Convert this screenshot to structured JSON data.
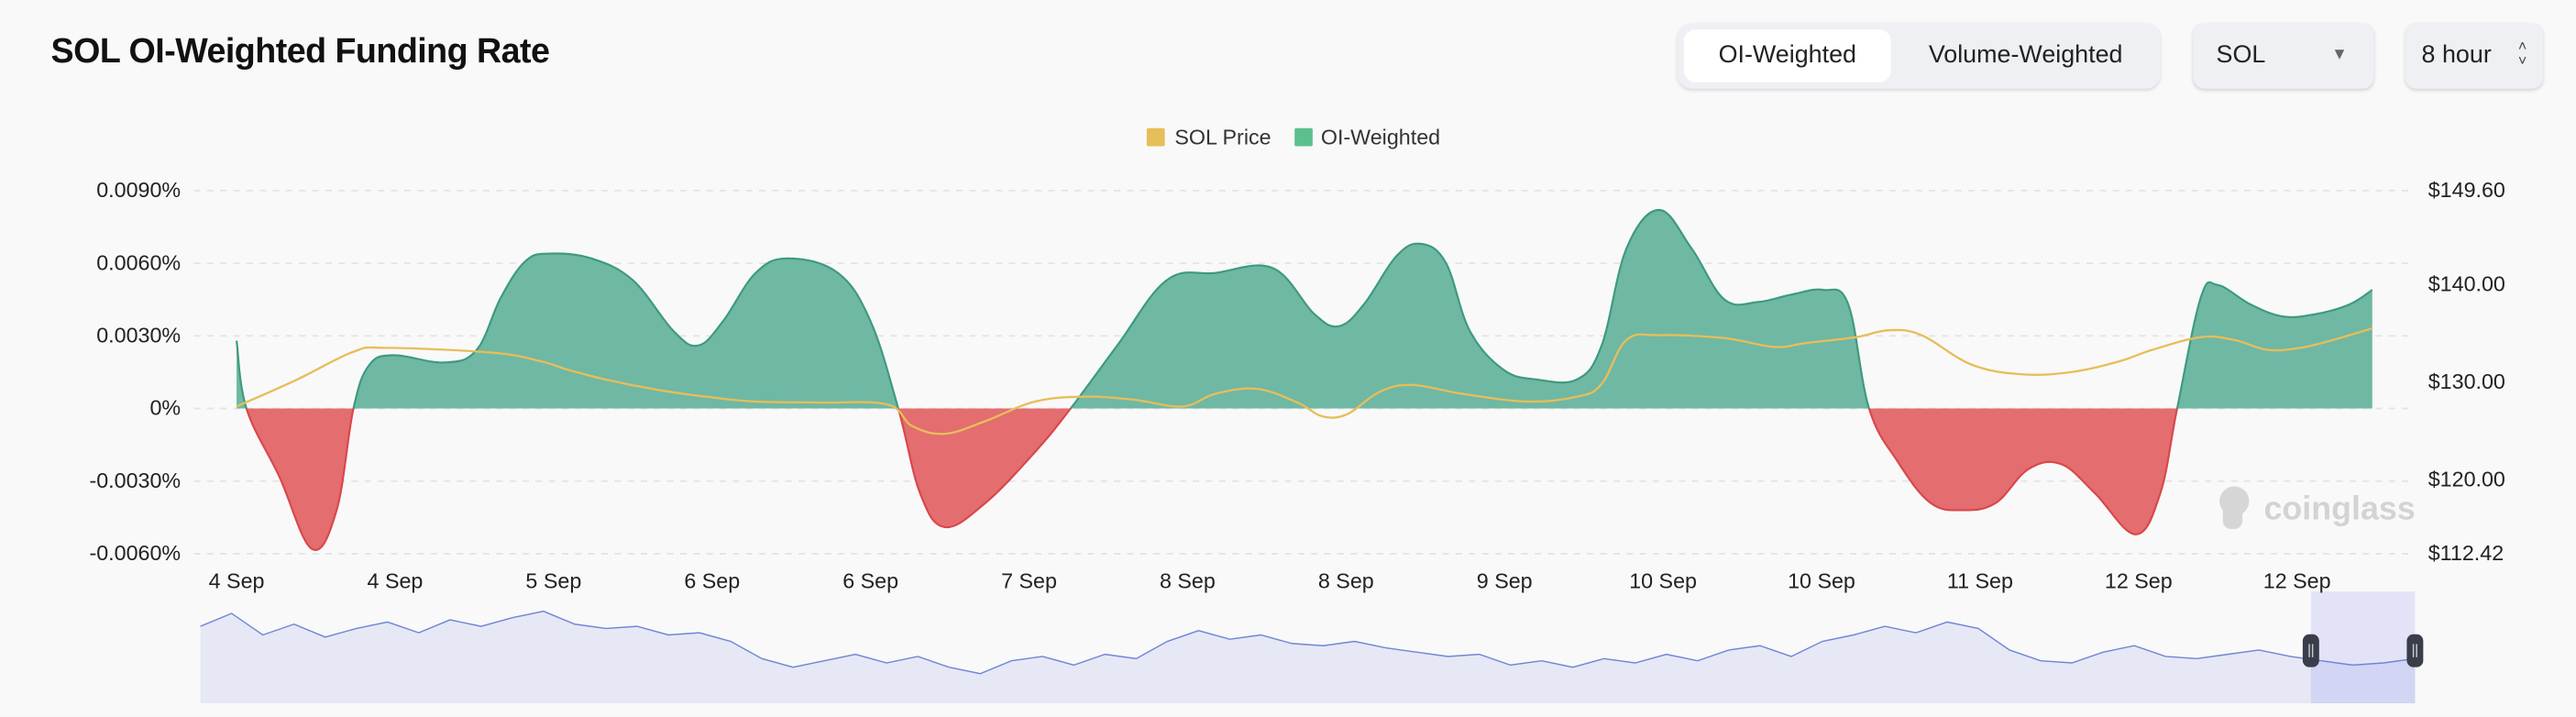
{
  "header": {
    "title": "SOL OI-Weighted Funding Rate",
    "toggle": [
      {
        "label": "OI-Weighted",
        "active": true
      },
      {
        "label": "Volume-Weighted",
        "active": false
      }
    ],
    "coin_select": "SOL",
    "interval_select": "8 hour"
  },
  "watermark": "coinglass",
  "colors": {
    "positive": "#6fb8a4",
    "positive_line": "#3d9a7e",
    "negative": "#e36d6f",
    "negative_line": "#d9474b",
    "price": "#e6be5a",
    "navigator": "#6f86d6"
  },
  "chart_data": {
    "type": "area",
    "title": "SOL OI-Weighted Funding Rate",
    "legend": [
      {
        "label": "SOL Price",
        "color": "#e6be5a"
      },
      {
        "label": "OI-Weighted",
        "color": "#5cc08e"
      }
    ],
    "legend_position": "top-center",
    "x_unit": "hours since start",
    "xlim": [
      0,
      215.6
    ],
    "x_tick_labels": [
      "4 Sep",
      "4 Sep",
      "5 Sep",
      "6 Sep",
      "6 Sep",
      "7 Sep",
      "8 Sep",
      "8 Sep",
      "9 Sep",
      "10 Sep",
      "10 Sep",
      "11 Sep",
      "12 Sep",
      "12 Sep"
    ],
    "x_tick_step_hours": 16,
    "y_left": {
      "ticks": [
        0.009,
        0.006,
        0.003,
        0,
        -0.003,
        -0.006
      ],
      "labels": [
        "0.0090%",
        "0.0060%",
        "0.0030%",
        "0%",
        "-0.0030%",
        "-0.0060%"
      ],
      "ylim": [
        -0.006,
        0.009
      ]
    },
    "y_right": {
      "ticks": [
        149.6,
        140,
        130,
        120,
        112.42
      ],
      "labels": [
        "$149.60",
        "$140.00",
        "$130.00",
        "$120.00",
        "$112.42"
      ],
      "ylim": [
        112.42,
        149.6
      ]
    },
    "grid": true,
    "series": [
      {
        "name": "OI-Weighted",
        "axis": "left",
        "unit": "%",
        "x": [
          0,
          1,
          4.3,
          7.6,
          10.1,
          11.8,
          13.4,
          15.9,
          20.9,
          24.2,
          26.7,
          29.2,
          31.7,
          35.8,
          40,
          44.1,
          46.6,
          49.1,
          52.4,
          55.7,
          60.7,
          64,
          66.8,
          69,
          71.5,
          75.6,
          80.6,
          84.2,
          88.9,
          93.9,
          98.8,
          104.6,
          108.8,
          111.3,
          113.8,
          117.1,
          119.6,
          122.1,
          124.5,
          127.9,
          131.2,
          135.3,
          137.8,
          140.3,
          143.6,
          146.9,
          150.2,
          153.6,
          156.9,
          160.2,
          162.7,
          164.8,
          167.7,
          171,
          174.3,
          177.6,
          180.9,
          184.2,
          187.6,
          191.7,
          194.2,
          195.9,
          198.3,
          200,
          203.3,
          206.6,
          209.9,
          213.3,
          215.6
        ],
        "values": [
          0.0028,
          0,
          -0.0028,
          -0.0058,
          -0.0042,
          0,
          0.0018,
          0.0022,
          0.0019,
          0.0024,
          0.0046,
          0.0061,
          0.0064,
          0.0062,
          0.0053,
          0.0032,
          0.0026,
          0.0036,
          0.0056,
          0.0062,
          0.0056,
          0.0036,
          0,
          -0.0035,
          -0.0049,
          -0.0039,
          -0.0018,
          0,
          0.0026,
          0.0053,
          0.0056,
          0.0058,
          0.0039,
          0.0034,
          0.0043,
          0.0063,
          0.0068,
          0.006,
          0.0032,
          0.0016,
          0.0012,
          0.0012,
          0.0026,
          0.0066,
          0.0082,
          0.0066,
          0.0045,
          0.0044,
          0.0047,
          0.0049,
          0.0043,
          0,
          -0.0022,
          -0.0039,
          -0.0042,
          -0.0039,
          -0.0025,
          -0.0023,
          -0.0035,
          -0.0052,
          -0.0035,
          0,
          0.0046,
          0.0051,
          0.0043,
          0.0038,
          0.0039,
          0.0043,
          0.0049
        ]
      },
      {
        "name": "SOL Price",
        "axis": "right",
        "unit": "$",
        "x": [
          0,
          6,
          11.8,
          15.1,
          25.9,
          30.8,
          33.3,
          37.5,
          42.5,
          47.4,
          52.4,
          59,
          65.7,
          68.2,
          71.5,
          75.6,
          80.6,
          85.6,
          90.5,
          95.5,
          98.8,
          103,
          107.1,
          109.6,
          112.1,
          115.4,
          118.7,
          123.7,
          130.3,
          135.3,
          137.8,
          140.3,
          143.6,
          150.2,
          155.2,
          158.5,
          163.5,
          166.8,
          170.1,
          175.1,
          180.1,
          185.1,
          190,
          193.4,
          198.3,
          201.7,
          205,
          208.3,
          211.6,
          215.6
        ],
        "values": [
          127.5,
          130.2,
          133.1,
          133.5,
          133,
          132.1,
          131.3,
          130.2,
          129.2,
          128.5,
          128,
          127.9,
          127.7,
          125.5,
          124.7,
          126,
          128,
          128.5,
          128.2,
          127.5,
          128.8,
          129.3,
          127.9,
          126.5,
          126.7,
          129,
          129.7,
          128.8,
          128,
          128.5,
          129.8,
          134.3,
          134.8,
          134.5,
          133.6,
          134,
          134.6,
          135.3,
          134.8,
          131.8,
          130.8,
          131,
          132.1,
          133.3,
          134.6,
          134.3,
          133.3,
          133.5,
          134.3,
          135.5
        ]
      }
    ]
  },
  "navigator": {
    "values": [
      140,
      146,
      136,
      141,
      135,
      139,
      142,
      137,
      143,
      140,
      144,
      147,
      141,
      139,
      140,
      136,
      137,
      133,
      125,
      121,
      124,
      127,
      123,
      126,
      121,
      118,
      124,
      126,
      122,
      127,
      125,
      133,
      138,
      134,
      136,
      132,
      131,
      133,
      130,
      128,
      126,
      127,
      122,
      124,
      121,
      125,
      123,
      127,
      124,
      129,
      131,
      126,
      133,
      136,
      140,
      137,
      142,
      139,
      129,
      124,
      123,
      128,
      131,
      126,
      125,
      127,
      129,
      126,
      124,
      122,
      123,
      125
    ],
    "selection": [
      0.953,
      1.0
    ]
  }
}
